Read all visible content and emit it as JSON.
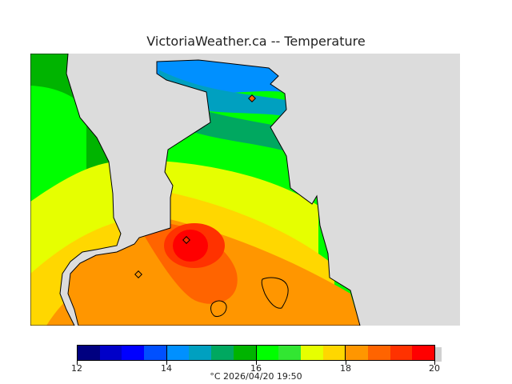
{
  "title": "VictoriaWeather.ca -- Temperature",
  "legend": {
    "min": 12,
    "max": 20,
    "ticks": [
      "12",
      "14",
      "16",
      "18",
      "20"
    ],
    "colors": [
      "#000080",
      "#0000c8",
      "#0000ff",
      "#0050ff",
      "#0090ff",
      "#00a0c0",
      "#00a860",
      "#00b400",
      "#00ff00",
      "#32e632",
      "#e6ff00",
      "#ffd700",
      "#ff9600",
      "#ff6400",
      "#ff3200",
      "#ff0000"
    ]
  },
  "footer": "°C  2026/04/20 19:50"
}
